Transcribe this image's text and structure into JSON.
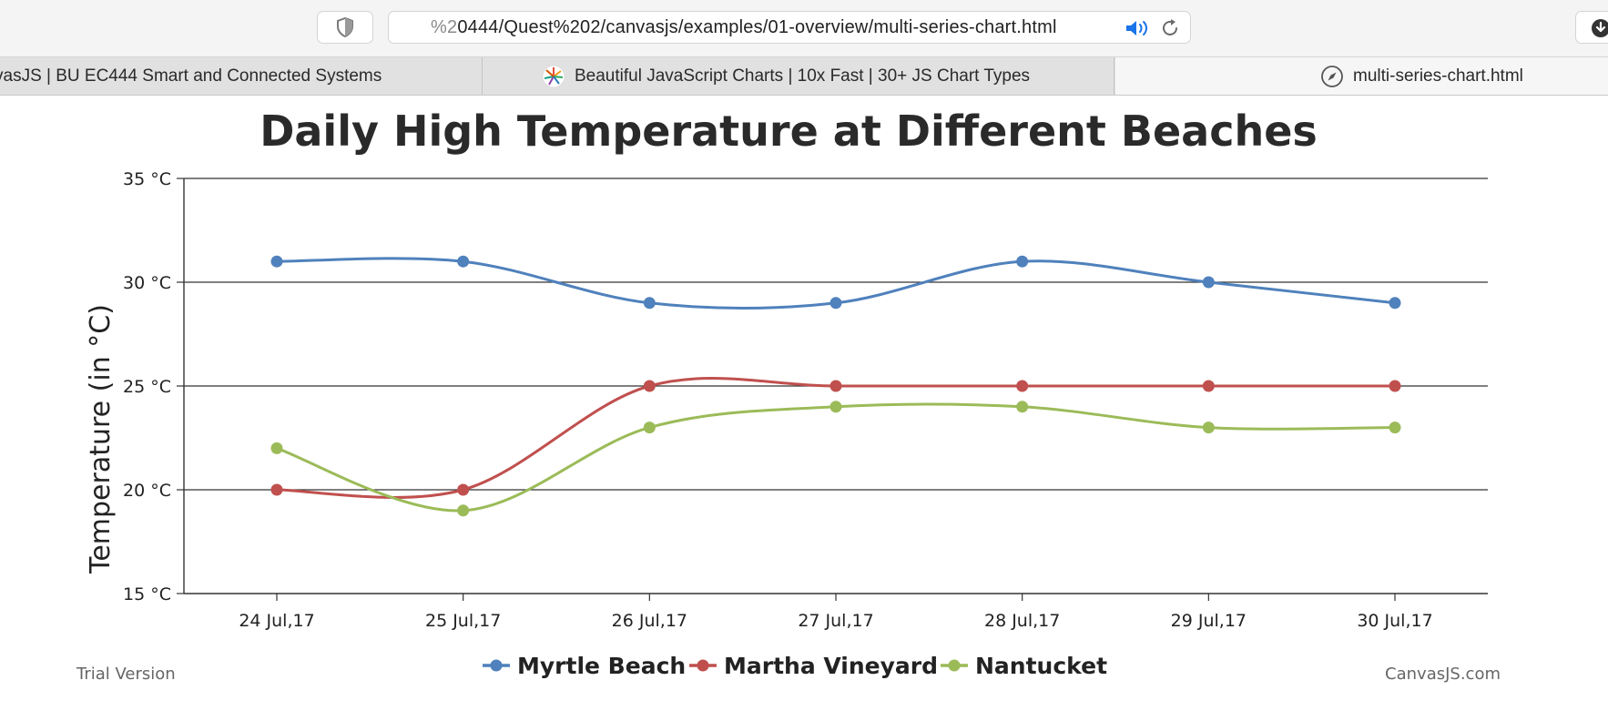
{
  "browser": {
    "url_dim": "%2",
    "url": "0444/Quest%202/canvasjs/examples/01-overview/multi-series-chart.html",
    "tabs": [
      {
        "label": "vasJS | BU EC444 Smart and Connected Systems"
      },
      {
        "label": "Beautiful JavaScript Charts | 10x Fast | 30+ JS Chart Types"
      },
      {
        "label": "multi-series-chart.html"
      }
    ]
  },
  "footer": {
    "left": "Trial Version",
    "right": "CanvasJS.com"
  },
  "chart_data": {
    "type": "line",
    "title": "Daily High Temperature at Different Beaches",
    "xlabel": "",
    "ylabel": "Temperature (in °C)",
    "categories": [
      "24 Jul,17",
      "25 Jul,17",
      "26 Jul,17",
      "27 Jul,17",
      "28 Jul,17",
      "29 Jul,17",
      "30 Jul,17"
    ],
    "y_tick_labels": [
      "15 °C",
      "20 °C",
      "25 °C",
      "30 °C",
      "35 °C"
    ],
    "ylim": [
      15,
      35
    ],
    "y_interval": 5,
    "grid": true,
    "legend_position": "bottom-center",
    "series": [
      {
        "name": "Myrtle Beach",
        "color": "#4f81bc",
        "values": [
          31,
          31,
          29,
          29,
          31,
          30,
          29
        ]
      },
      {
        "name": "Martha Vineyard",
        "color": "#c0504e",
        "values": [
          20,
          20,
          25,
          25,
          25,
          25,
          25
        ]
      },
      {
        "name": "Nantucket",
        "color": "#9bbb58",
        "values": [
          22,
          19,
          23,
          24,
          24,
          23,
          23
        ]
      }
    ]
  }
}
